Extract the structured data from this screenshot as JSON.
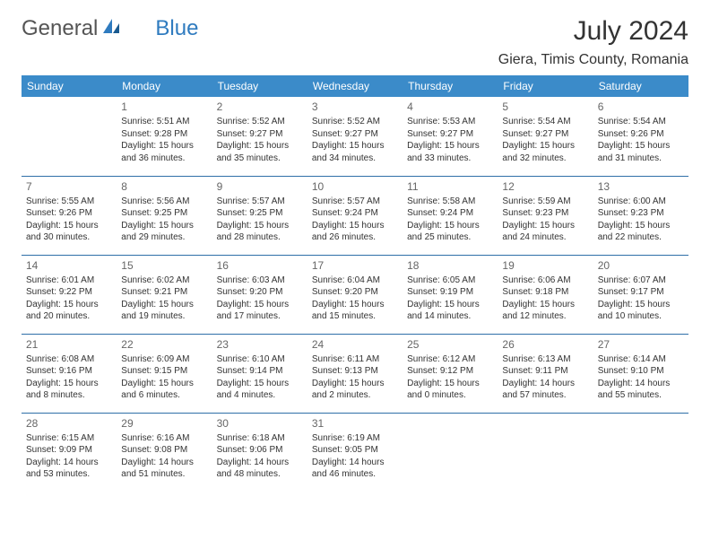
{
  "logo": {
    "part1": "General",
    "part2": "Blue"
  },
  "title": "July 2024",
  "location": "Giera, Timis County, Romania",
  "colors": {
    "header_bg": "#3b8bc9",
    "header_text": "#ffffff",
    "row_border": "#2f6fa8",
    "logo_blue": "#2f7bbf",
    "text": "#333333",
    "daynum": "#666666"
  },
  "dayHeaders": [
    "Sunday",
    "Monday",
    "Tuesday",
    "Wednesday",
    "Thursday",
    "Friday",
    "Saturday"
  ],
  "weeks": [
    [
      {
        "day": "",
        "sunrise": "",
        "sunset": "",
        "daylight": ""
      },
      {
        "day": "1",
        "sunrise": "Sunrise: 5:51 AM",
        "sunset": "Sunset: 9:28 PM",
        "daylight": "Daylight: 15 hours and 36 minutes."
      },
      {
        "day": "2",
        "sunrise": "Sunrise: 5:52 AM",
        "sunset": "Sunset: 9:27 PM",
        "daylight": "Daylight: 15 hours and 35 minutes."
      },
      {
        "day": "3",
        "sunrise": "Sunrise: 5:52 AM",
        "sunset": "Sunset: 9:27 PM",
        "daylight": "Daylight: 15 hours and 34 minutes."
      },
      {
        "day": "4",
        "sunrise": "Sunrise: 5:53 AM",
        "sunset": "Sunset: 9:27 PM",
        "daylight": "Daylight: 15 hours and 33 minutes."
      },
      {
        "day": "5",
        "sunrise": "Sunrise: 5:54 AM",
        "sunset": "Sunset: 9:27 PM",
        "daylight": "Daylight: 15 hours and 32 minutes."
      },
      {
        "day": "6",
        "sunrise": "Sunrise: 5:54 AM",
        "sunset": "Sunset: 9:26 PM",
        "daylight": "Daylight: 15 hours and 31 minutes."
      }
    ],
    [
      {
        "day": "7",
        "sunrise": "Sunrise: 5:55 AM",
        "sunset": "Sunset: 9:26 PM",
        "daylight": "Daylight: 15 hours and 30 minutes."
      },
      {
        "day": "8",
        "sunrise": "Sunrise: 5:56 AM",
        "sunset": "Sunset: 9:25 PM",
        "daylight": "Daylight: 15 hours and 29 minutes."
      },
      {
        "day": "9",
        "sunrise": "Sunrise: 5:57 AM",
        "sunset": "Sunset: 9:25 PM",
        "daylight": "Daylight: 15 hours and 28 minutes."
      },
      {
        "day": "10",
        "sunrise": "Sunrise: 5:57 AM",
        "sunset": "Sunset: 9:24 PM",
        "daylight": "Daylight: 15 hours and 26 minutes."
      },
      {
        "day": "11",
        "sunrise": "Sunrise: 5:58 AM",
        "sunset": "Sunset: 9:24 PM",
        "daylight": "Daylight: 15 hours and 25 minutes."
      },
      {
        "day": "12",
        "sunrise": "Sunrise: 5:59 AM",
        "sunset": "Sunset: 9:23 PM",
        "daylight": "Daylight: 15 hours and 24 minutes."
      },
      {
        "day": "13",
        "sunrise": "Sunrise: 6:00 AM",
        "sunset": "Sunset: 9:23 PM",
        "daylight": "Daylight: 15 hours and 22 minutes."
      }
    ],
    [
      {
        "day": "14",
        "sunrise": "Sunrise: 6:01 AM",
        "sunset": "Sunset: 9:22 PM",
        "daylight": "Daylight: 15 hours and 20 minutes."
      },
      {
        "day": "15",
        "sunrise": "Sunrise: 6:02 AM",
        "sunset": "Sunset: 9:21 PM",
        "daylight": "Daylight: 15 hours and 19 minutes."
      },
      {
        "day": "16",
        "sunrise": "Sunrise: 6:03 AM",
        "sunset": "Sunset: 9:20 PM",
        "daylight": "Daylight: 15 hours and 17 minutes."
      },
      {
        "day": "17",
        "sunrise": "Sunrise: 6:04 AM",
        "sunset": "Sunset: 9:20 PM",
        "daylight": "Daylight: 15 hours and 15 minutes."
      },
      {
        "day": "18",
        "sunrise": "Sunrise: 6:05 AM",
        "sunset": "Sunset: 9:19 PM",
        "daylight": "Daylight: 15 hours and 14 minutes."
      },
      {
        "day": "19",
        "sunrise": "Sunrise: 6:06 AM",
        "sunset": "Sunset: 9:18 PM",
        "daylight": "Daylight: 15 hours and 12 minutes."
      },
      {
        "day": "20",
        "sunrise": "Sunrise: 6:07 AM",
        "sunset": "Sunset: 9:17 PM",
        "daylight": "Daylight: 15 hours and 10 minutes."
      }
    ],
    [
      {
        "day": "21",
        "sunrise": "Sunrise: 6:08 AM",
        "sunset": "Sunset: 9:16 PM",
        "daylight": "Daylight: 15 hours and 8 minutes."
      },
      {
        "day": "22",
        "sunrise": "Sunrise: 6:09 AM",
        "sunset": "Sunset: 9:15 PM",
        "daylight": "Daylight: 15 hours and 6 minutes."
      },
      {
        "day": "23",
        "sunrise": "Sunrise: 6:10 AM",
        "sunset": "Sunset: 9:14 PM",
        "daylight": "Daylight: 15 hours and 4 minutes."
      },
      {
        "day": "24",
        "sunrise": "Sunrise: 6:11 AM",
        "sunset": "Sunset: 9:13 PM",
        "daylight": "Daylight: 15 hours and 2 minutes."
      },
      {
        "day": "25",
        "sunrise": "Sunrise: 6:12 AM",
        "sunset": "Sunset: 9:12 PM",
        "daylight": "Daylight: 15 hours and 0 minutes."
      },
      {
        "day": "26",
        "sunrise": "Sunrise: 6:13 AM",
        "sunset": "Sunset: 9:11 PM",
        "daylight": "Daylight: 14 hours and 57 minutes."
      },
      {
        "day": "27",
        "sunrise": "Sunrise: 6:14 AM",
        "sunset": "Sunset: 9:10 PM",
        "daylight": "Daylight: 14 hours and 55 minutes."
      }
    ],
    [
      {
        "day": "28",
        "sunrise": "Sunrise: 6:15 AM",
        "sunset": "Sunset: 9:09 PM",
        "daylight": "Daylight: 14 hours and 53 minutes."
      },
      {
        "day": "29",
        "sunrise": "Sunrise: 6:16 AM",
        "sunset": "Sunset: 9:08 PM",
        "daylight": "Daylight: 14 hours and 51 minutes."
      },
      {
        "day": "30",
        "sunrise": "Sunrise: 6:18 AM",
        "sunset": "Sunset: 9:06 PM",
        "daylight": "Daylight: 14 hours and 48 minutes."
      },
      {
        "day": "31",
        "sunrise": "Sunrise: 6:19 AM",
        "sunset": "Sunset: 9:05 PM",
        "daylight": "Daylight: 14 hours and 46 minutes."
      },
      {
        "day": "",
        "sunrise": "",
        "sunset": "",
        "daylight": ""
      },
      {
        "day": "",
        "sunrise": "",
        "sunset": "",
        "daylight": ""
      },
      {
        "day": "",
        "sunrise": "",
        "sunset": "",
        "daylight": ""
      }
    ]
  ]
}
